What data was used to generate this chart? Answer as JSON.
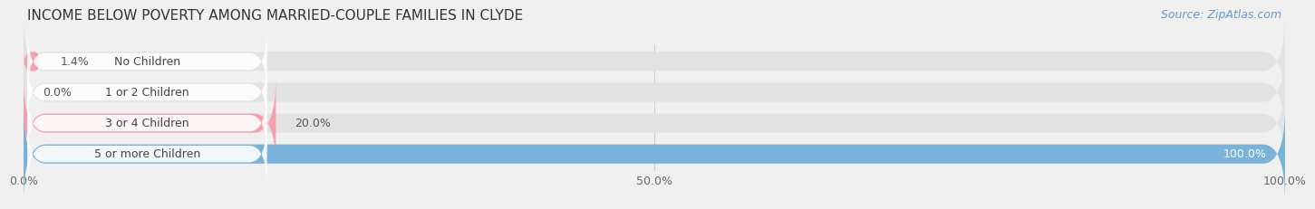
{
  "title": "INCOME BELOW POVERTY AMONG MARRIED-COUPLE FAMILIES IN CLYDE",
  "source": "Source: ZipAtlas.com",
  "categories": [
    "No Children",
    "1 or 2 Children",
    "3 or 4 Children",
    "5 or more Children"
  ],
  "values": [
    1.4,
    0.0,
    20.0,
    100.0
  ],
  "bar_colors": [
    "#f4a0ae",
    "#f5c98a",
    "#f4a0ae",
    "#7ab3d9"
  ],
  "bg_color": "#f0f0f0",
  "bar_bg_color": "#e2e2e2",
  "xlim": [
    0,
    100
  ],
  "xtick_labels": [
    "0.0%",
    "50.0%",
    "100.0%"
  ],
  "title_fontsize": 11,
  "label_fontsize": 9,
  "value_fontsize": 9,
  "source_fontsize": 9,
  "bar_height": 0.62,
  "figsize": [
    14.06,
    2.33
  ]
}
